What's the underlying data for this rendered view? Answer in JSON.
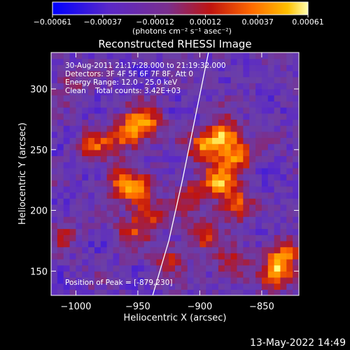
{
  "colorbar": {
    "ticks": [
      "-0.00061",
      "-0.00037",
      "-0.00012",
      "0.00012",
      "0.00037",
      "0.00061"
    ],
    "tick_values": [
      -0.00061,
      -0.00037,
      -0.00012,
      0.00012,
      0.00037,
      0.00061
    ],
    "units_label": "(photons cm⁻² s⁻¹ asec⁻²)"
  },
  "footer_timestamp": "13-May-2022 14:49",
  "colors": {
    "background": "#000000",
    "foreground": "#ffffff",
    "colormap": [
      "#0000ff",
      "#5a28c8",
      "#6b3fa8",
      "#7a2f8e",
      "#c0140f",
      "#ff6a00",
      "#ffb000",
      "#ffff80"
    ]
  },
  "chart_data": {
    "type": "heatmap",
    "title": "Reconstructed RHESSI Image",
    "xlabel": "Heliocentric X (arcsec)",
    "ylabel": "Heliocentric Y (arcsec)",
    "xlim": [
      -1020,
      -820
    ],
    "ylim": [
      130,
      330
    ],
    "x_ticks": [
      -1000,
      -950,
      -900,
      -850
    ],
    "x_tick_labels": [
      "−1000",
      "−950",
      "−900",
      "−850"
    ],
    "y_ticks": [
      150,
      200,
      250,
      300
    ],
    "y_tick_labels": [
      "150",
      "200",
      "250",
      "300"
    ],
    "value_range": [
      -0.00061,
      0.00061
    ],
    "grid": false,
    "annotations": [
      "30-Aug-2011 21:17:28.000 to 21:19:32.000",
      "Detectors: 3F 4F 5F 6F 7F 8F, Att 0",
      "Energy Range: 12.0 - 25.0 keV",
      "Clean    Total counts: 3.42E+03"
    ],
    "peak_label": "Position of Peak = [-879,230]",
    "peak_position": [
      -879,
      230
    ],
    "sources": [
      {
        "x": -945,
        "y": 273,
        "peak": 0.00061
      },
      {
        "x": -960,
        "y": 262,
        "peak": 0.0005
      },
      {
        "x": -985,
        "y": 255,
        "peak": 0.0004
      },
      {
        "x": -950,
        "y": 215,
        "peak": 0.00052
      },
      {
        "x": -965,
        "y": 225,
        "peak": 0.0004
      },
      {
        "x": -940,
        "y": 195,
        "peak": 0.00034
      },
      {
        "x": -955,
        "y": 183,
        "peak": 0.0003
      },
      {
        "x": -880,
        "y": 262,
        "peak": 0.00058
      },
      {
        "x": -870,
        "y": 245,
        "peak": 0.0005
      },
      {
        "x": -895,
        "y": 252,
        "peak": 0.00052
      },
      {
        "x": -885,
        "y": 225,
        "peak": 0.00056
      },
      {
        "x": -872,
        "y": 205,
        "peak": 0.00052
      },
      {
        "x": -898,
        "y": 180,
        "peak": 0.0004
      },
      {
        "x": -875,
        "y": 155,
        "peak": 0.00036
      },
      {
        "x": -838,
        "y": 150,
        "peak": 0.00055
      },
      {
        "x": -832,
        "y": 165,
        "peak": 0.00045
      },
      {
        "x": -925,
        "y": 160,
        "peak": 0.0003
      },
      {
        "x": -910,
        "y": 215,
        "peak": 0.00028
      },
      {
        "x": -1010,
        "y": 180,
        "peak": 0.0002
      },
      {
        "x": -1005,
        "y": 305,
        "peak": 0.00018
      }
    ],
    "limb": [
      {
        "x": -938,
        "y": 130
      },
      {
        "x": -925,
        "y": 175
      },
      {
        "x": -914,
        "y": 225
      },
      {
        "x": -903,
        "y": 280
      },
      {
        "x": -893,
        "y": 330
      }
    ]
  }
}
